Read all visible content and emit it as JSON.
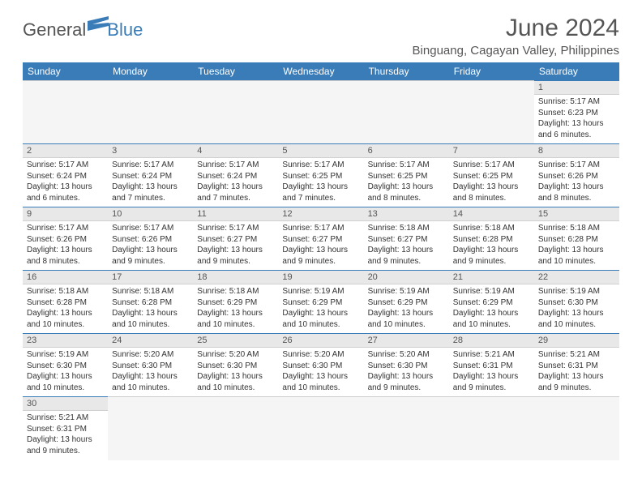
{
  "logo": {
    "part1": "General",
    "part2": "Blue"
  },
  "title": "June 2024",
  "location": "Binguang, Cagayan Valley, Philippines",
  "day_headers": [
    "Sunday",
    "Monday",
    "Tuesday",
    "Wednesday",
    "Thursday",
    "Friday",
    "Saturday"
  ],
  "colors": {
    "header_bg": "#3a7cb8",
    "header_fg": "#ffffff",
    "daynum_bg": "#e8e8e8",
    "border": "#3a7cb8"
  },
  "weeks": [
    [
      null,
      null,
      null,
      null,
      null,
      null,
      {
        "n": "1",
        "sr": "5:17 AM",
        "ss": "6:23 PM",
        "dl": "13 hours and 6 minutes."
      }
    ],
    [
      {
        "n": "2",
        "sr": "5:17 AM",
        "ss": "6:24 PM",
        "dl": "13 hours and 6 minutes."
      },
      {
        "n": "3",
        "sr": "5:17 AM",
        "ss": "6:24 PM",
        "dl": "13 hours and 7 minutes."
      },
      {
        "n": "4",
        "sr": "5:17 AM",
        "ss": "6:24 PM",
        "dl": "13 hours and 7 minutes."
      },
      {
        "n": "5",
        "sr": "5:17 AM",
        "ss": "6:25 PM",
        "dl": "13 hours and 7 minutes."
      },
      {
        "n": "6",
        "sr": "5:17 AM",
        "ss": "6:25 PM",
        "dl": "13 hours and 8 minutes."
      },
      {
        "n": "7",
        "sr": "5:17 AM",
        "ss": "6:25 PM",
        "dl": "13 hours and 8 minutes."
      },
      {
        "n": "8",
        "sr": "5:17 AM",
        "ss": "6:26 PM",
        "dl": "13 hours and 8 minutes."
      }
    ],
    [
      {
        "n": "9",
        "sr": "5:17 AM",
        "ss": "6:26 PM",
        "dl": "13 hours and 8 minutes."
      },
      {
        "n": "10",
        "sr": "5:17 AM",
        "ss": "6:26 PM",
        "dl": "13 hours and 9 minutes."
      },
      {
        "n": "11",
        "sr": "5:17 AM",
        "ss": "6:27 PM",
        "dl": "13 hours and 9 minutes."
      },
      {
        "n": "12",
        "sr": "5:17 AM",
        "ss": "6:27 PM",
        "dl": "13 hours and 9 minutes."
      },
      {
        "n": "13",
        "sr": "5:18 AM",
        "ss": "6:27 PM",
        "dl": "13 hours and 9 minutes."
      },
      {
        "n": "14",
        "sr": "5:18 AM",
        "ss": "6:28 PM",
        "dl": "13 hours and 9 minutes."
      },
      {
        "n": "15",
        "sr": "5:18 AM",
        "ss": "6:28 PM",
        "dl": "13 hours and 10 minutes."
      }
    ],
    [
      {
        "n": "16",
        "sr": "5:18 AM",
        "ss": "6:28 PM",
        "dl": "13 hours and 10 minutes."
      },
      {
        "n": "17",
        "sr": "5:18 AM",
        "ss": "6:28 PM",
        "dl": "13 hours and 10 minutes."
      },
      {
        "n": "18",
        "sr": "5:18 AM",
        "ss": "6:29 PM",
        "dl": "13 hours and 10 minutes."
      },
      {
        "n": "19",
        "sr": "5:19 AM",
        "ss": "6:29 PM",
        "dl": "13 hours and 10 minutes."
      },
      {
        "n": "20",
        "sr": "5:19 AM",
        "ss": "6:29 PM",
        "dl": "13 hours and 10 minutes."
      },
      {
        "n": "21",
        "sr": "5:19 AM",
        "ss": "6:29 PM",
        "dl": "13 hours and 10 minutes."
      },
      {
        "n": "22",
        "sr": "5:19 AM",
        "ss": "6:30 PM",
        "dl": "13 hours and 10 minutes."
      }
    ],
    [
      {
        "n": "23",
        "sr": "5:19 AM",
        "ss": "6:30 PM",
        "dl": "13 hours and 10 minutes."
      },
      {
        "n": "24",
        "sr": "5:20 AM",
        "ss": "6:30 PM",
        "dl": "13 hours and 10 minutes."
      },
      {
        "n": "25",
        "sr": "5:20 AM",
        "ss": "6:30 PM",
        "dl": "13 hours and 10 minutes."
      },
      {
        "n": "26",
        "sr": "5:20 AM",
        "ss": "6:30 PM",
        "dl": "13 hours and 10 minutes."
      },
      {
        "n": "27",
        "sr": "5:20 AM",
        "ss": "6:30 PM",
        "dl": "13 hours and 9 minutes."
      },
      {
        "n": "28",
        "sr": "5:21 AM",
        "ss": "6:31 PM",
        "dl": "13 hours and 9 minutes."
      },
      {
        "n": "29",
        "sr": "5:21 AM",
        "ss": "6:31 PM",
        "dl": "13 hours and 9 minutes."
      }
    ],
    [
      {
        "n": "30",
        "sr": "5:21 AM",
        "ss": "6:31 PM",
        "dl": "13 hours and 9 minutes."
      },
      null,
      null,
      null,
      null,
      null,
      null
    ]
  ],
  "labels": {
    "sunrise": "Sunrise:",
    "sunset": "Sunset:",
    "daylight": "Daylight:"
  }
}
